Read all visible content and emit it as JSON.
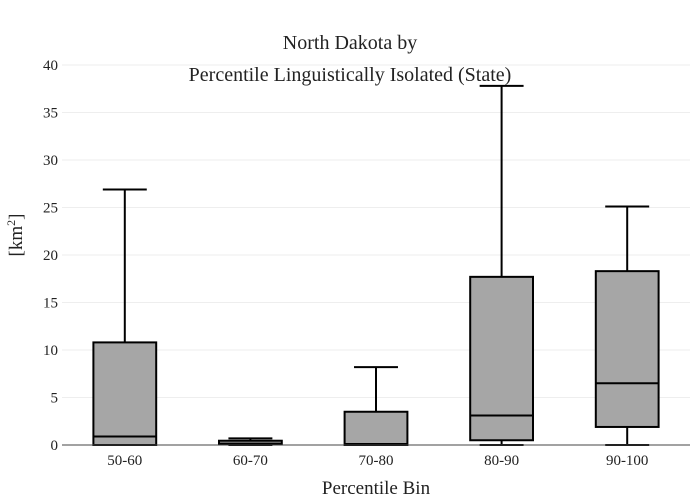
{
  "chart_data": {
    "type": "box",
    "title_line1": "North Dakota  by",
    "title_line2": "Percentile Linguistically Isolated (State)",
    "xlabel": "Percentile Bin",
    "ylabel_base": "[km",
    "ylabel_sup": "2",
    "ylabel_close": "]",
    "ylim": [
      0,
      40
    ],
    "yticks": [
      0,
      5,
      10,
      15,
      20,
      25,
      30,
      35,
      40
    ],
    "ytick_labels": [
      "0",
      "5",
      "10",
      "15",
      "20",
      "25",
      "30",
      "35",
      "40"
    ],
    "grid": true,
    "categories": [
      "50-60",
      "60-70",
      "70-80",
      "80-90",
      "90-100"
    ],
    "boxes": [
      {
        "category": "50-60",
        "min": 0,
        "q1": 0,
        "median": 0.9,
        "q3": 10.8,
        "max": 26.9
      },
      {
        "category": "60-70",
        "min": 0,
        "q1": 0.05,
        "median": 0.15,
        "q3": 0.45,
        "max": 0.7
      },
      {
        "category": "70-80",
        "min": 0,
        "q1": 0,
        "median": 0.1,
        "q3": 3.5,
        "max": 8.2
      },
      {
        "category": "80-90",
        "min": 0,
        "q1": 0.5,
        "median": 3.1,
        "q3": 17.7,
        "max": 37.8
      },
      {
        "category": "90-100",
        "min": 0,
        "q1": 1.9,
        "median": 6.5,
        "q3": 18.3,
        "max": 25.1
      }
    ],
    "colors": {
      "box_fill": "#a6a6a6",
      "box_stroke": "#000000"
    }
  }
}
